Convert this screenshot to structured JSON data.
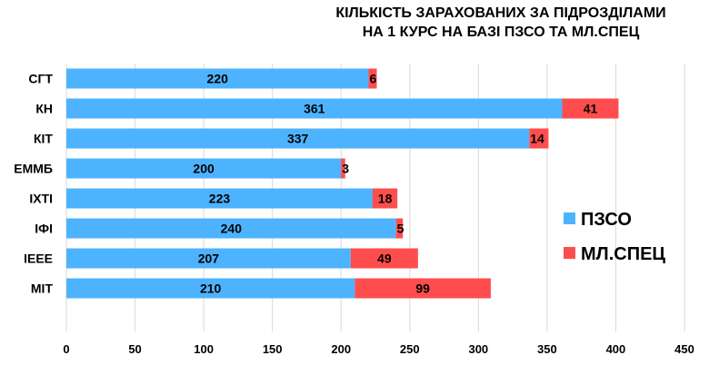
{
  "chart_data": {
    "type": "bar",
    "orientation": "horizontal",
    "stacked": true,
    "title": [
      "КІЛЬКІСТЬ ЗАРАХОВАНИХ ЗА ПІДРОЗДІЛАМИ",
      "НА 1 КУРС НА БАЗІ ПЗСО ТА МЛ.СПЕЦ"
    ],
    "categories": [
      "СГТ",
      "КН",
      "КІТ",
      "ЕММБ",
      "ІХТІ",
      "ІФІ",
      "ІЕЕЕ",
      "МІТ"
    ],
    "series": [
      {
        "name": "ПЗСО",
        "values": [
          220,
          361,
          337,
          200,
          223,
          240,
          207,
          210
        ],
        "color": "#4db3ff"
      },
      {
        "name": "МЛ.СПЕЦ",
        "values": [
          6,
          41,
          14,
          3,
          18,
          5,
          49,
          99
        ],
        "color": "#ff4d4d"
      }
    ],
    "xlim": [
      0,
      450
    ],
    "xticks": [
      "0",
      "50",
      "100",
      "150",
      "200",
      "250",
      "300",
      "350",
      "400",
      "450"
    ],
    "grid": "vertical",
    "legend_position": "right"
  }
}
